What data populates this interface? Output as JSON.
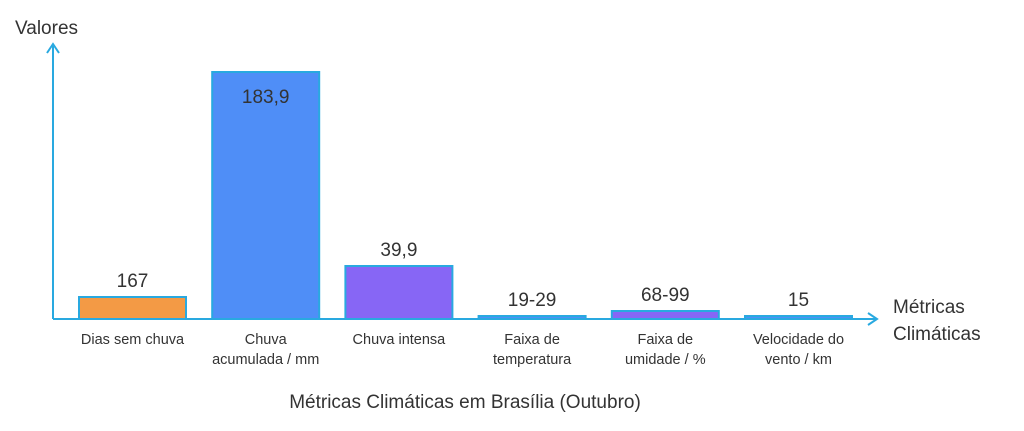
{
  "chart_data": {
    "type": "bar",
    "title": "Métricas Climáticas em Brasília (Outubro)",
    "ylabel": "Valores",
    "xlabel": [
      "Métricas",
      "Climáticas"
    ],
    "categories": [
      [
        "Dias sem chuva"
      ],
      [
        "Chuva",
        "acumulada / mm"
      ],
      [
        "Chuva intensa"
      ],
      [
        "Faixa de",
        "temperatura"
      ],
      [
        "Faixa de",
        "umidade / %"
      ],
      [
        "Velocidade do",
        "vento / km"
      ]
    ],
    "data_labels": [
      "167",
      "183,9",
      "39,9",
      "19-29",
      "68-99",
      "15"
    ],
    "values": [
      167,
      183.9,
      39.9,
      19,
      68,
      15
    ],
    "bar_colors": [
      "#F39A45",
      "#4F8EF7",
      "#8766F5",
      "#4F8EF7",
      "#8766F5",
      "#4F8EF7"
    ],
    "axis_color": "#29A9E0",
    "grid": false,
    "legend": "none"
  }
}
